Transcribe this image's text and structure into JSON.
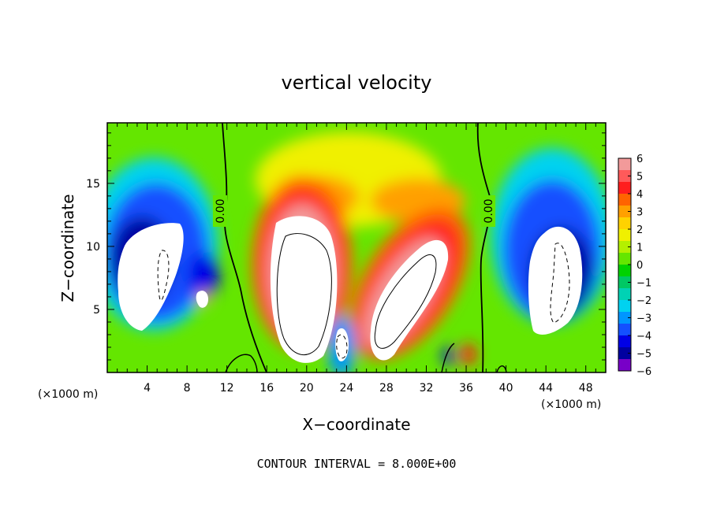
{
  "chart_data": {
    "type": "heatmap",
    "title": "vertical velocity",
    "xlabel": "X−coordinate",
    "ylabel": "Z−coordinate",
    "x_unit": "(×1000 m)",
    "y_unit": "(×1000 m)",
    "xlim": [
      0,
      50
    ],
    "ylim": [
      0,
      19.8
    ],
    "x_ticks": [
      "4",
      "8",
      "12",
      "16",
      "20",
      "24",
      "28",
      "32",
      "36",
      "40",
      "44",
      "48"
    ],
    "y_ticks": [
      "5",
      "10",
      "15"
    ],
    "colorbar": {
      "labels": [
        "6",
        "5",
        "4",
        "3",
        "2",
        "1",
        "0",
        "−1",
        "−2",
        "−3",
        "−4",
        "−5",
        "−6"
      ],
      "range": [
        -6,
        6
      ],
      "colors": [
        "#f29a9a",
        "#ff5a5a",
        "#ff1e1e",
        "#ff6400",
        "#ffa000",
        "#ffd200",
        "#f0f000",
        "#b4f000",
        "#64e600",
        "#00d200",
        "#00c864",
        "#00d2b4",
        "#00d2f0",
        "#0096ff",
        "#1450ff",
        "#0000e6",
        "#0000a0",
        "#7800c8"
      ]
    },
    "contour_labels": [
      "0.00",
      "0.00"
    ],
    "contour_interval": "CONTOUR INTERVAL = 8.000E+00",
    "features": [
      {
        "kind": "updraft",
        "x": 20.2,
        "z": 6.5,
        "peak": 8
      },
      {
        "kind": "updraft",
        "x": 29.6,
        "z": 6.0,
        "peak": 8
      },
      {
        "kind": "downdraft",
        "x": 5.0,
        "z": 7.5,
        "peak": -8
      },
      {
        "kind": "downdraft",
        "x": 45.5,
        "z": 7.5,
        "peak": -8
      },
      {
        "kind": "downdraft",
        "x": 23.3,
        "z": 2.2,
        "peak": -8
      }
    ]
  }
}
